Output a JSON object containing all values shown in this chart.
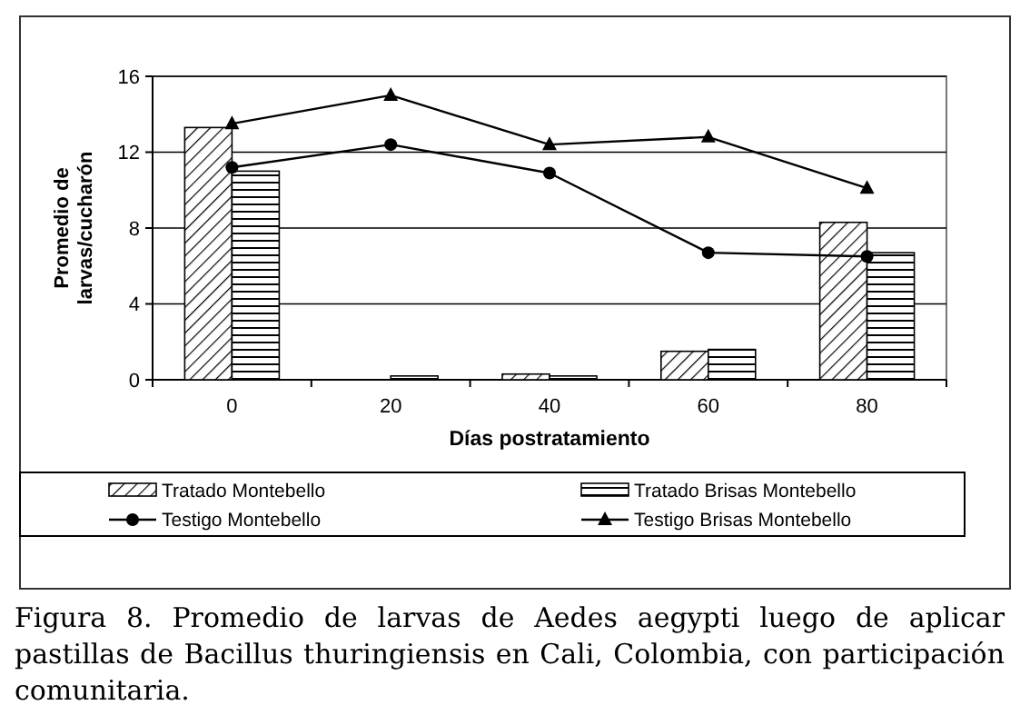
{
  "chart_data": {
    "type": "bar",
    "xlabel": "Días postratamiento",
    "ylabel": "Promedio de\nlarvas/cucharón",
    "categories": [
      "0",
      "20",
      "40",
      "60",
      "80"
    ],
    "ylim": [
      0,
      16
    ],
    "yticks": [
      0,
      4,
      8,
      12,
      16
    ],
    "grid": "y",
    "legend": "bottom",
    "series": [
      {
        "name": "Tratado Montebello",
        "color": "#000000",
        "values": [
          13.3,
          null,
          0.3,
          1.5,
          8.3
        ]
      },
      {
        "name": "Tratado Brisas Montebello",
        "color": "#000000",
        "values": [
          11,
          0.2,
          0.2,
          1.6,
          6.7
        ]
      },
      {
        "name": "Testigo Montebello",
        "type": "line",
        "marker": "circle",
        "color": "#000000",
        "values": [
          11.2,
          12.4,
          10.9,
          6.7,
          6.5
        ]
      },
      {
        "name": "Testigo Brisas Montebello",
        "type": "line",
        "marker": "triangle",
        "color": "#000000",
        "values": [
          13.5,
          15,
          12.4,
          12.8,
          10.1
        ]
      }
    ],
    "annotations": [
      "Figura 8. Promedio de larvas de Aedes aegypti luego de aplicar pastillas de Bacillus thuringiensis en Cali, Colombia, con participación comunitaria."
    ]
  }
}
